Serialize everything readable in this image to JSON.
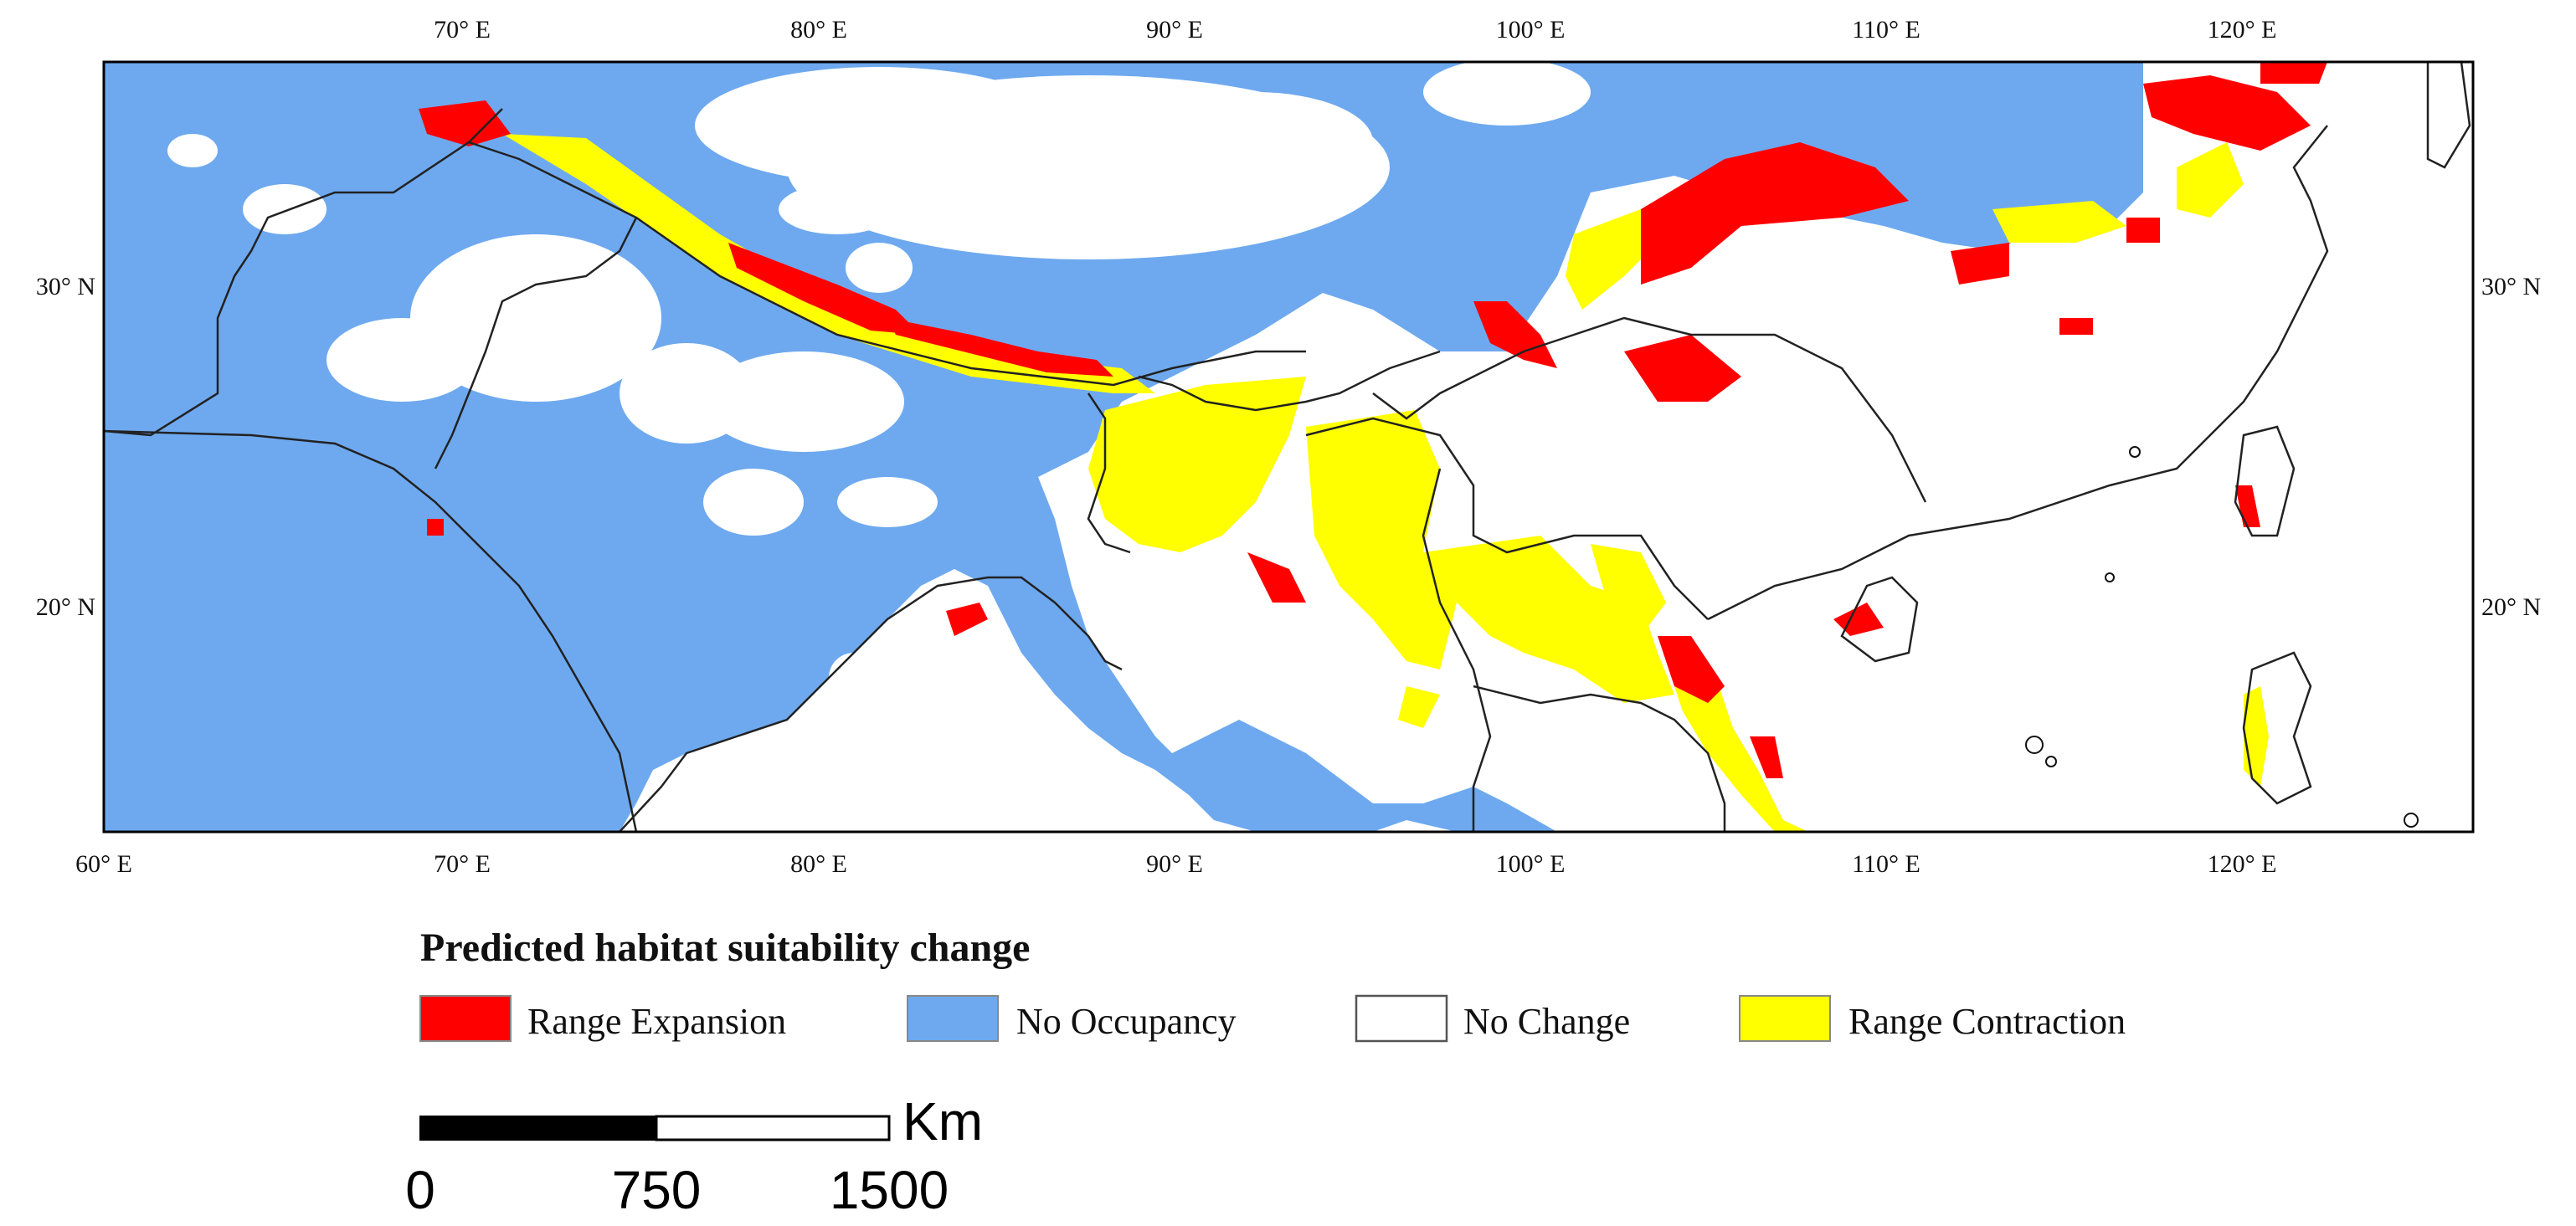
{
  "colors": {
    "expansion": "#ff0000",
    "no_occupancy": "#6ea9ef",
    "no_change": "#ffffff",
    "contraction": "#ffff00",
    "border": "#222222"
  },
  "axes": {
    "top_ticks": [
      "70° E",
      "80° E",
      "90° E",
      "100° E",
      "110° E",
      "120° E"
    ],
    "bottom_ticks": [
      "60° E",
      "70° E",
      "80° E",
      "90° E",
      "100° E",
      "110° E",
      "120° E"
    ],
    "left_ticks": [
      "30° N",
      "20° N"
    ],
    "right_ticks": [
      "30° N",
      "20° N"
    ]
  },
  "legend": {
    "title": "Predicted habitat suitability change",
    "items": [
      {
        "label": "Range Expansion",
        "color": "#ff0000"
      },
      {
        "label": "No Occupancy",
        "color": "#6ea9ef"
      },
      {
        "label": "No Change",
        "color": "#ffffff"
      },
      {
        "label": "Range Contraction",
        "color": "#ffff00"
      }
    ]
  },
  "scale_bar": {
    "unit": "Km",
    "labels": [
      "0",
      "750",
      "1500"
    ]
  }
}
